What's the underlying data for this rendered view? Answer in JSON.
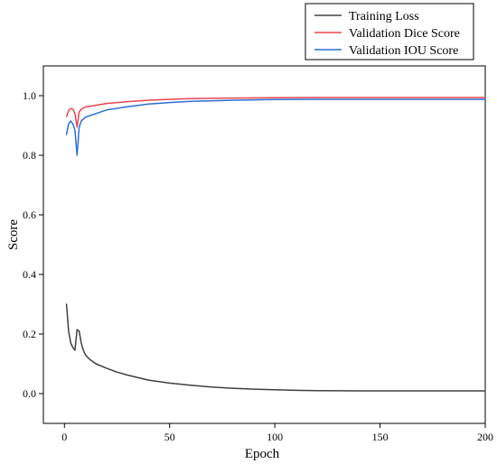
{
  "chart_data": {
    "type": "line",
    "title": "",
    "xlabel": "Epoch",
    "ylabel": "Score",
    "xlim": [
      -10,
      200
    ],
    "ylim": [
      -0.1,
      1.1
    ],
    "xticks": [
      0,
      50,
      100,
      150,
      200
    ],
    "yticks": [
      0.0,
      0.2,
      0.4,
      0.6,
      0.8,
      1.0
    ],
    "xtick_labels": [
      "0",
      "50",
      "100",
      "150",
      "200"
    ],
    "ytick_labels": [
      "0.0",
      "0.2",
      "0.4",
      "0.6",
      "0.8",
      "1.0"
    ],
    "grid": false,
    "legend_position": "top-right, above plot",
    "series": [
      {
        "name": "Training Loss",
        "color": "#404040",
        "x": [
          1,
          2,
          3,
          4,
          5,
          6,
          7,
          8,
          9,
          10,
          12,
          15,
          20,
          25,
          30,
          40,
          50,
          60,
          70,
          80,
          90,
          100,
          110,
          120,
          140,
          160,
          180,
          200
        ],
        "y": [
          0.3,
          0.21,
          0.17,
          0.155,
          0.145,
          0.215,
          0.21,
          0.17,
          0.145,
          0.13,
          0.115,
          0.1,
          0.085,
          0.072,
          0.062,
          0.045,
          0.035,
          0.028,
          0.022,
          0.018,
          0.015,
          0.013,
          0.011,
          0.01,
          0.009,
          0.009,
          0.009,
          0.009
        ]
      },
      {
        "name": "Validation Dice Score",
        "color": "#e8454f",
        "x": [
          1,
          2,
          3,
          4,
          5,
          6,
          7,
          8,
          10,
          15,
          20,
          30,
          40,
          50,
          60,
          80,
          100,
          120,
          150,
          200
        ],
        "y": [
          0.93,
          0.95,
          0.957,
          0.955,
          0.94,
          0.895,
          0.945,
          0.955,
          0.962,
          0.968,
          0.974,
          0.98,
          0.985,
          0.988,
          0.99,
          0.992,
          0.993,
          0.994,
          0.994,
          0.994
        ]
      },
      {
        "name": "Validation IOU Score",
        "color": "#2a6fd6",
        "x": [
          1,
          2,
          3,
          4,
          5,
          6,
          7,
          8,
          10,
          15,
          20,
          30,
          40,
          50,
          60,
          80,
          100,
          120,
          150,
          200
        ],
        "y": [
          0.87,
          0.905,
          0.915,
          0.905,
          0.885,
          0.8,
          0.895,
          0.915,
          0.928,
          0.94,
          0.952,
          0.963,
          0.972,
          0.977,
          0.981,
          0.985,
          0.987,
          0.988,
          0.988,
          0.988
        ]
      }
    ]
  }
}
